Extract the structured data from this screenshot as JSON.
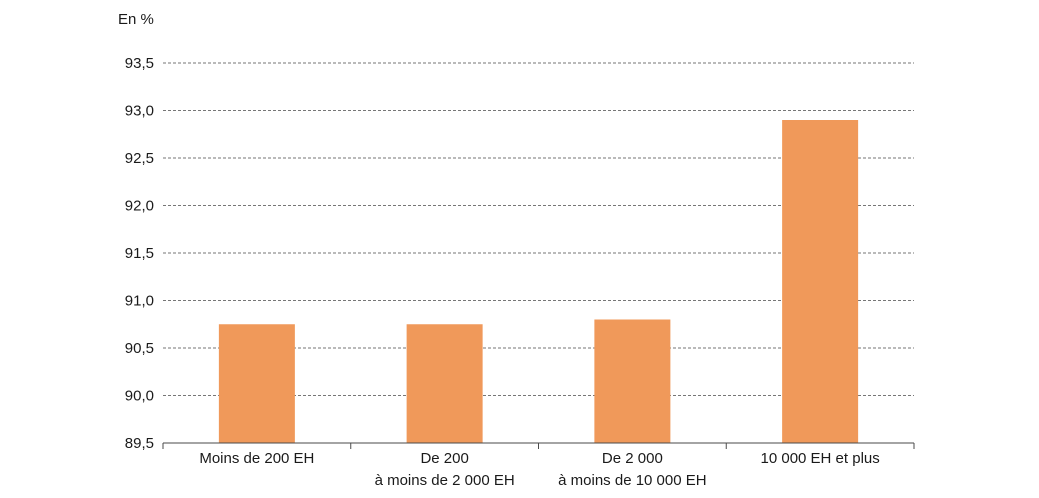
{
  "chart_data": {
    "type": "bar",
    "unit_label": "En %",
    "categories": [
      [
        "Moins de 200 EH"
      ],
      [
        "De 200",
        "à moins de 2 000 EH"
      ],
      [
        "De 2 000",
        "à moins de 10 000 EH"
      ],
      [
        "10 000 EH et plus"
      ]
    ],
    "values": [
      90.75,
      90.75,
      90.8,
      92.9
    ],
    "ylim": [
      89.5,
      93.5
    ],
    "yticks": [
      "89,5",
      "90,0",
      "90,5",
      "91,0",
      "91,5",
      "92,0",
      "92,5",
      "93,0",
      "93,5"
    ],
    "grid": true,
    "bar_color": "#f0995a"
  }
}
